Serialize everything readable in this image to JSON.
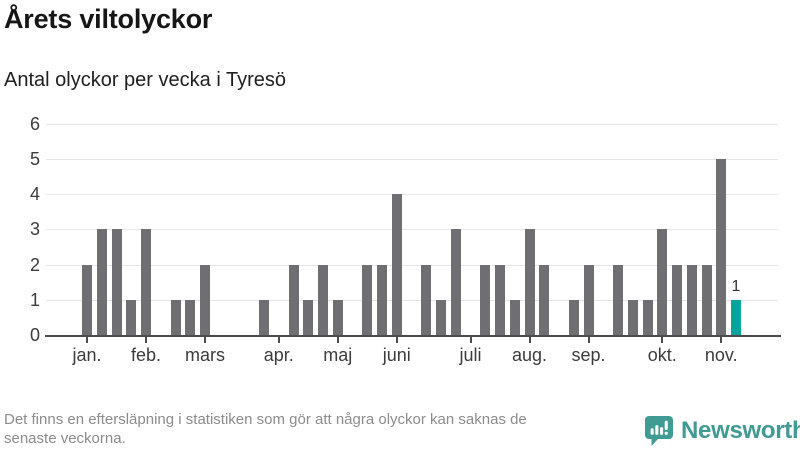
{
  "title": "Årets viltolyckor",
  "subtitle": "Antal olyckor per vecka i Tyresö",
  "footnote": {
    "line1": "Det finns en eftersläpning i statistiken som gör att några olyckor kan saknas de",
    "line2": "senaste veckorna."
  },
  "logo": {
    "name": "Newsworthy",
    "icon": "newsworthy-chart-bubble-icon"
  },
  "colors": {
    "bar": "#6e6e73",
    "highlight_bar": "#03a49c",
    "logo_teal": "#3f9b94",
    "grid": "#e6e6e6",
    "axis": "#4c4c4c",
    "title_text": "#161616",
    "axis_text": "#3c3c3c",
    "footnote_text": "#8c8c8c"
  },
  "chart_data": {
    "type": "bar",
    "title": "Årets viltolyckor",
    "subtitle": "Antal olyckor per vecka i Tyresö",
    "x_unit": "vecka",
    "ylabel": "Antal olyckor",
    "ylim": [
      0,
      6
    ],
    "yticks": [
      0,
      1,
      2,
      3,
      4,
      5,
      6
    ],
    "grid": true,
    "weekly_values": [
      2,
      3,
      3,
      1,
      3,
      0,
      1,
      1,
      2,
      0,
      0,
      0,
      1,
      0,
      2,
      1,
      2,
      1,
      0,
      2,
      2,
      4,
      0,
      2,
      1,
      3,
      0,
      2,
      2,
      1,
      3,
      2,
      0,
      1,
      2,
      0,
      2,
      1,
      1,
      3,
      2,
      2,
      2,
      5,
      1
    ],
    "month_ticks": [
      {
        "label": "jan.",
        "week_index": 0
      },
      {
        "label": "feb.",
        "week_index": 4
      },
      {
        "label": "mars",
        "week_index": 8
      },
      {
        "label": "apr.",
        "week_index": 13
      },
      {
        "label": "maj",
        "week_index": 17
      },
      {
        "label": "juni",
        "week_index": 21
      },
      {
        "label": "juli",
        "week_index": 26
      },
      {
        "label": "aug.",
        "week_index": 30
      },
      {
        "label": "sep.",
        "week_index": 34
      },
      {
        "label": "okt.",
        "week_index": 39
      },
      {
        "label": "nov.",
        "week_index": 43
      }
    ],
    "highlight_last_bar": true,
    "last_bar_value_label": "1"
  }
}
